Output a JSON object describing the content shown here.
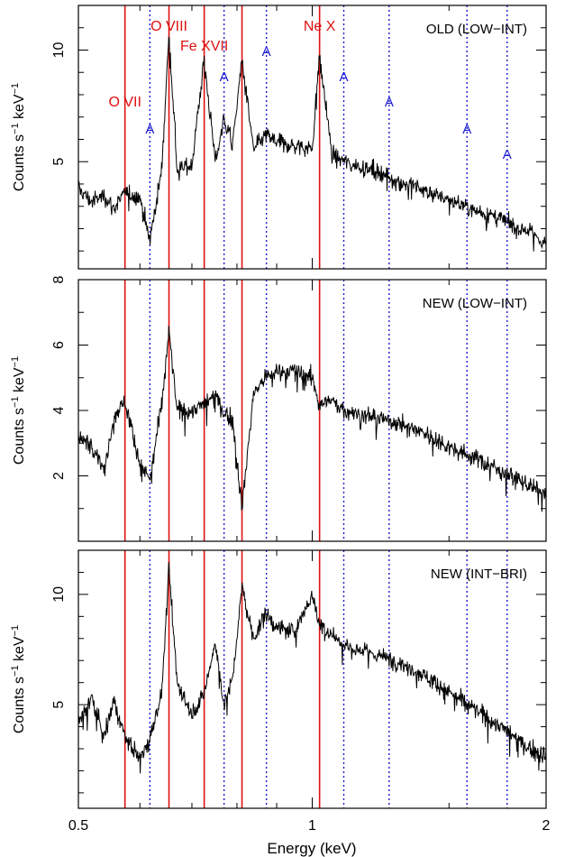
{
  "figure": {
    "xlabel": "Energy (keV)",
    "ylabel_main": "Counts s",
    "ylabel_exp": "−1",
    "ylabel_tail": " keV",
    "x_ticks": [
      "0.5",
      "1",
      "2"
    ],
    "x_range_kev": [
      0.5,
      2.0
    ],
    "x_scale": "log",
    "colors": {
      "data": "#000000",
      "emission": "#dd1111",
      "absorption": "#1a1ad0",
      "frame": "#000000"
    }
  },
  "line_markers": {
    "emission": [
      {
        "label": "O VII",
        "energy": 0.574
      },
      {
        "label": "O VIII",
        "energy": 0.654
      },
      {
        "label": "Fe XVII",
        "energy": 0.726
      },
      {
        "label": "",
        "energy": 0.812
      },
      {
        "label": "Ne X",
        "energy": 1.022
      }
    ],
    "absorption": [
      {
        "label": "A",
        "energy": 0.618
      },
      {
        "label": "A",
        "energy": 0.77
      },
      {
        "label": "A",
        "energy": 0.873
      },
      {
        "label": "A",
        "energy": 1.098
      },
      {
        "label": "A",
        "energy": 1.256
      },
      {
        "label": "A",
        "energy": 1.582
      },
      {
        "label": "A",
        "energy": 1.782
      }
    ]
  },
  "chart_data": [
    {
      "type": "line",
      "title": "OLD (LOW−INT)",
      "xlabel": "",
      "ylabel": "Counts s−1 keV−1",
      "xlim": [
        0.5,
        2.0
      ],
      "ylim": [
        0.2,
        12.0
      ],
      "yticks": [
        5,
        10
      ],
      "x": [
        0.5,
        0.52,
        0.54,
        0.555,
        0.574,
        0.6,
        0.618,
        0.64,
        0.654,
        0.67,
        0.7,
        0.726,
        0.75,
        0.77,
        0.79,
        0.812,
        0.84,
        0.87,
        0.9,
        0.95,
        1.0,
        1.022,
        1.06,
        1.1,
        1.2,
        1.3,
        1.4,
        1.5,
        1.6,
        1.7,
        1.8,
        1.9,
        2.0
      ],
      "y": [
        3.8,
        3.2,
        3.5,
        2.9,
        3.6,
        3.4,
        1.5,
        4.6,
        10.8,
        4.6,
        4.9,
        9.6,
        5.0,
        6.9,
        5.8,
        9.6,
        5.5,
        6.2,
        5.9,
        5.7,
        5.6,
        9.8,
        5.3,
        5.0,
        4.6,
        4.1,
        3.7,
        3.3,
        2.9,
        2.6,
        2.2,
        1.9,
        1.3
      ]
    },
    {
      "type": "line",
      "title": "NEW (LOW−INT)",
      "xlabel": "",
      "ylabel": "Counts s−1 keV−1",
      "xlim": [
        0.5,
        2.0
      ],
      "ylim": [
        0.0,
        8.0
      ],
      "yticks": [
        2,
        4,
        6,
        8
      ],
      "x": [
        0.5,
        0.52,
        0.54,
        0.555,
        0.574,
        0.6,
        0.618,
        0.64,
        0.654,
        0.67,
        0.7,
        0.726,
        0.75,
        0.77,
        0.79,
        0.812,
        0.84,
        0.87,
        0.9,
        0.95,
        1.0,
        1.022,
        1.06,
        1.1,
        1.2,
        1.3,
        1.4,
        1.5,
        1.6,
        1.7,
        1.8,
        1.9,
        2.0
      ],
      "y": [
        3.1,
        3.0,
        2.2,
        3.8,
        4.3,
        2.4,
        1.9,
        4.2,
        6.4,
        4.0,
        4.0,
        4.2,
        4.5,
        3.9,
        3.7,
        1.0,
        4.5,
        5.0,
        5.2,
        5.2,
        5.0,
        4.2,
        4.3,
        4.0,
        3.8,
        3.6,
        3.3,
        2.9,
        2.6,
        2.3,
        2.0,
        1.7,
        1.4
      ]
    },
    {
      "type": "line",
      "title": "NEW (INT−BRI)",
      "xlabel": "Energy (keV)",
      "ylabel": "Counts s−1 keV−1",
      "xlim": [
        0.5,
        2.0
      ],
      "ylim": [
        0.3,
        12.0
      ],
      "yticks": [
        5,
        10
      ],
      "x": [
        0.5,
        0.52,
        0.54,
        0.555,
        0.574,
        0.6,
        0.618,
        0.64,
        0.654,
        0.67,
        0.7,
        0.726,
        0.75,
        0.77,
        0.79,
        0.812,
        0.84,
        0.87,
        0.9,
        0.95,
        1.0,
        1.022,
        1.06,
        1.1,
        1.2,
        1.3,
        1.4,
        1.5,
        1.6,
        1.7,
        1.8,
        1.9,
        2.0
      ],
      "y": [
        4.2,
        5.3,
        3.5,
        5.2,
        3.6,
        2.5,
        3.5,
        5.5,
        11.2,
        6.0,
        4.6,
        5.5,
        7.8,
        5.0,
        6.2,
        10.3,
        8.0,
        9.1,
        8.5,
        8.3,
        10.0,
        8.6,
        8.2,
        7.7,
        7.3,
        6.9,
        6.3,
        5.6,
        4.9,
        4.3,
        3.7,
        3.0,
        2.7
      ]
    }
  ]
}
